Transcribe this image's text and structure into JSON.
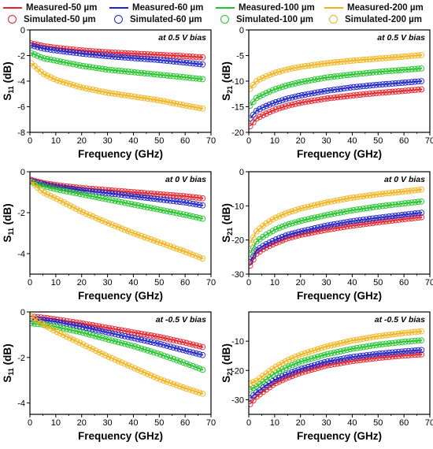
{
  "legend": {
    "items": [
      {
        "label": "Measured-50 µm",
        "kind": "line",
        "color": "#e8202a"
      },
      {
        "label": "Measured-60 µm",
        "kind": "line",
        "color": "#1f24c8"
      },
      {
        "label": "Measured-100 µm",
        "kind": "line",
        "color": "#22c32a"
      },
      {
        "label": "Measured-200 µm",
        "kind": "line",
        "color": "#f2b21c"
      },
      {
        "label": "Simulated-50 µm",
        "kind": "circle",
        "color": "#e8202a"
      },
      {
        "label": "Simulated-60 µm",
        "kind": "circle",
        "color": "#1f24c8"
      },
      {
        "label": "Simulated-100 µm",
        "kind": "circle",
        "color": "#22c32a"
      },
      {
        "label": "Simulated-200 µm",
        "kind": "circle",
        "color": "#f2b21c"
      }
    ]
  },
  "chart_data": [
    {
      "type": "line",
      "panel": "s11-0.5v",
      "annotation": "at 0.5 V bias",
      "xlabel": "Frequency (GHz)",
      "ylabel": "S11 (dB)",
      "xlim": [
        0,
        70
      ],
      "ylim": [
        -8,
        0
      ],
      "xticks": [
        0,
        10,
        20,
        30,
        40,
        50,
        60,
        70
      ],
      "yticks": [
        -8,
        -6,
        -4,
        -2,
        0
      ],
      "x": [
        0.5,
        5,
        10,
        20,
        30,
        40,
        50,
        60,
        67
      ],
      "series": [
        {
          "name": "Measured-50 µm",
          "color": "#e8202a",
          "values": [
            -1.05,
            -1.25,
            -1.4,
            -1.6,
            -1.75,
            -1.85,
            -1.95,
            -2.05,
            -2.15
          ]
        },
        {
          "name": "Measured-60 µm",
          "color": "#1f24c8",
          "values": [
            -1.2,
            -1.45,
            -1.6,
            -1.85,
            -2.05,
            -2.2,
            -2.35,
            -2.55,
            -2.7
          ]
        },
        {
          "name": "Measured-100 µm",
          "color": "#22c32a",
          "values": [
            -1.8,
            -2.2,
            -2.4,
            -2.8,
            -3.1,
            -3.3,
            -3.5,
            -3.7,
            -3.85
          ]
        },
        {
          "name": "Measured-200 µm",
          "color": "#f2b21c",
          "values": [
            -2.6,
            -3.4,
            -3.9,
            -4.5,
            -4.9,
            -5.2,
            -5.5,
            -5.9,
            -6.15
          ]
        }
      ]
    },
    {
      "type": "line",
      "panel": "s21-0.5v",
      "annotation": "at 0.5 V bias",
      "xlabel": "Frequency (GHz)",
      "ylabel": "S21 (dB)",
      "xlim": [
        0,
        70
      ],
      "ylim": [
        -20,
        0
      ],
      "xticks": [
        0,
        10,
        20,
        30,
        40,
        50,
        60,
        70
      ],
      "yticks": [
        -20,
        -15,
        -10,
        -5,
        0
      ],
      "x": [
        0.5,
        3,
        6,
        10,
        15,
        20,
        30,
        40,
        50,
        60,
        67
      ],
      "series": [
        {
          "name": "Measured-50 µm",
          "color": "#e8202a",
          "values": [
            -18.8,
            -17.3,
            -16.5,
            -15.6,
            -14.8,
            -14.2,
            -13.4,
            -12.8,
            -12.3,
            -11.9,
            -11.6
          ]
        },
        {
          "name": "Measured-60 µm",
          "color": "#1f24c8",
          "values": [
            -17.3,
            -15.8,
            -15.0,
            -14.2,
            -13.4,
            -12.8,
            -11.9,
            -11.2,
            -10.7,
            -10.3,
            -10.0
          ]
        },
        {
          "name": "Measured-100 µm",
          "color": "#22c32a",
          "values": [
            -14.8,
            -13.3,
            -12.5,
            -11.6,
            -10.8,
            -10.2,
            -9.3,
            -8.7,
            -8.2,
            -7.8,
            -7.5
          ]
        },
        {
          "name": "Measured-200 µm",
          "color": "#f2b21c",
          "values": [
            -11.5,
            -10.0,
            -9.2,
            -8.4,
            -7.7,
            -7.2,
            -6.5,
            -6.0,
            -5.6,
            -5.2,
            -4.9
          ]
        }
      ]
    },
    {
      "type": "line",
      "panel": "s11-0v",
      "annotation": "at 0 V bias",
      "xlabel": "Frequency (GHz)",
      "ylabel": "S11 (dB)",
      "xlim": [
        0,
        70
      ],
      "ylim": [
        -5,
        0
      ],
      "xticks": [
        0,
        10,
        20,
        30,
        40,
        50,
        60,
        70
      ],
      "yticks": [
        -4,
        -2,
        0
      ],
      "x": [
        0.5,
        5,
        10,
        20,
        30,
        40,
        50,
        60,
        67
      ],
      "series": [
        {
          "name": "Measured-50 µm",
          "color": "#e8202a",
          "values": [
            -0.4,
            -0.55,
            -0.65,
            -0.8,
            -0.9,
            -1.0,
            -1.1,
            -1.2,
            -1.3
          ]
        },
        {
          "name": "Measured-60 µm",
          "color": "#1f24c8",
          "values": [
            -0.45,
            -0.6,
            -0.72,
            -0.9,
            -1.05,
            -1.2,
            -1.35,
            -1.5,
            -1.65
          ]
        },
        {
          "name": "Measured-100 µm",
          "color": "#22c32a",
          "values": [
            -0.5,
            -0.7,
            -0.85,
            -1.1,
            -1.35,
            -1.6,
            -1.85,
            -2.1,
            -2.3
          ]
        },
        {
          "name": "Measured-200 µm",
          "color": "#f2b21c",
          "values": [
            -0.5,
            -1.0,
            -1.3,
            -1.95,
            -2.5,
            -3.0,
            -3.45,
            -3.9,
            -4.25
          ]
        }
      ]
    },
    {
      "type": "line",
      "panel": "s21-0v",
      "annotation": "at 0 V bias",
      "xlabel": "Frequency (GHz)",
      "ylabel": "S21 (dB)",
      "xlim": [
        0,
        70
      ],
      "ylim": [
        -30,
        0
      ],
      "xticks": [
        0,
        10,
        20,
        30,
        40,
        50,
        60,
        70
      ],
      "yticks": [
        -30,
        -20,
        -10,
        0
      ],
      "x": [
        0.5,
        3,
        6,
        10,
        15,
        20,
        30,
        40,
        50,
        60,
        67
      ],
      "series": [
        {
          "name": "Measured-50 µm",
          "color": "#e8202a",
          "values": [
            -27.5,
            -24.0,
            -22.5,
            -21.0,
            -19.5,
            -18.5,
            -17.0,
            -15.8,
            -14.8,
            -13.9,
            -13.3
          ]
        },
        {
          "name": "Measured-60 µm",
          "color": "#1f24c8",
          "values": [
            -26.5,
            -23.0,
            -21.5,
            -20.0,
            -18.5,
            -17.5,
            -15.8,
            -14.5,
            -13.5,
            -12.6,
            -12.0
          ]
        },
        {
          "name": "Measured-100 µm",
          "color": "#22c32a",
          "values": [
            -24.0,
            -20.5,
            -18.8,
            -17.0,
            -15.5,
            -14.4,
            -12.7,
            -11.3,
            -10.2,
            -9.3,
            -8.7
          ]
        },
        {
          "name": "Measured-200 µm",
          "color": "#f2b21c",
          "values": [
            -21.0,
            -17.5,
            -15.5,
            -13.6,
            -12.0,
            -10.8,
            -9.0,
            -7.6,
            -6.6,
            -5.8,
            -5.2
          ]
        }
      ]
    },
    {
      "type": "line",
      "panel": "s11-neg0.5v",
      "annotation": "at -0.5 V bias",
      "xlabel": "Frequency (GHz)",
      "ylabel": "S11 (dB)",
      "xlim": [
        0,
        70
      ],
      "ylim": [
        -4.5,
        0
      ],
      "xticks": [
        0,
        10,
        20,
        30,
        40,
        50,
        60,
        70
      ],
      "yticks": [
        -4,
        -2,
        0
      ],
      "x": [
        0.5,
        5,
        10,
        20,
        30,
        40,
        50,
        60,
        67
      ],
      "series": [
        {
          "name": "Measured-50 µm",
          "color": "#e8202a",
          "values": [
            -0.2,
            -0.25,
            -0.33,
            -0.5,
            -0.7,
            -0.9,
            -1.1,
            -1.35,
            -1.55
          ]
        },
        {
          "name": "Measured-60 µm",
          "color": "#1f24c8",
          "values": [
            -0.3,
            -0.35,
            -0.43,
            -0.65,
            -0.9,
            -1.15,
            -1.4,
            -1.7,
            -1.9
          ]
        },
        {
          "name": "Measured-100 µm",
          "color": "#22c32a",
          "values": [
            -0.5,
            -0.55,
            -0.65,
            -0.9,
            -1.2,
            -1.5,
            -1.85,
            -2.25,
            -2.55
          ]
        },
        {
          "name": "Measured-200 µm",
          "color": "#f2b21c",
          "values": [
            -0.2,
            -0.55,
            -0.85,
            -1.4,
            -1.95,
            -2.45,
            -2.95,
            -3.35,
            -3.6
          ]
        }
      ]
    },
    {
      "type": "line",
      "panel": "s21-neg0.5v",
      "annotation": "at -0.5 V bias",
      "xlabel": "Frequency (GHz)",
      "ylabel": "S21 (dB)",
      "xlim": [
        0,
        70
      ],
      "ylim": [
        -35,
        0
      ],
      "xticks": [
        0,
        10,
        20,
        30,
        40,
        50,
        60,
        70
      ],
      "yticks": [
        -30,
        -20,
        -10
      ],
      "x": [
        0.5,
        3,
        6,
        10,
        15,
        20,
        30,
        40,
        50,
        60,
        67
      ],
      "series": [
        {
          "name": "Measured-50 µm",
          "color": "#e8202a",
          "values": [
            -31.5,
            -29.0,
            -27.0,
            -24.5,
            -22.5,
            -20.8,
            -18.3,
            -16.8,
            -15.7,
            -14.9,
            -14.5
          ]
        },
        {
          "name": "Measured-60 µm",
          "color": "#1f24c8",
          "values": [
            -29.5,
            -27.5,
            -25.5,
            -23.2,
            -21.2,
            -19.5,
            -17.0,
            -15.4,
            -14.3,
            -13.5,
            -13.0
          ]
        },
        {
          "name": "Measured-100 µm",
          "color": "#22c32a",
          "values": [
            -26.5,
            -25.5,
            -23.5,
            -21.0,
            -18.8,
            -17.0,
            -14.5,
            -12.6,
            -11.2,
            -10.2,
            -9.7
          ]
        },
        {
          "name": "Measured-200 µm",
          "color": "#f2b21c",
          "values": [
            -24.5,
            -23.5,
            -21.5,
            -19.0,
            -16.5,
            -14.6,
            -11.8,
            -9.8,
            -8.3,
            -7.2,
            -6.6
          ]
        }
      ]
    }
  ]
}
